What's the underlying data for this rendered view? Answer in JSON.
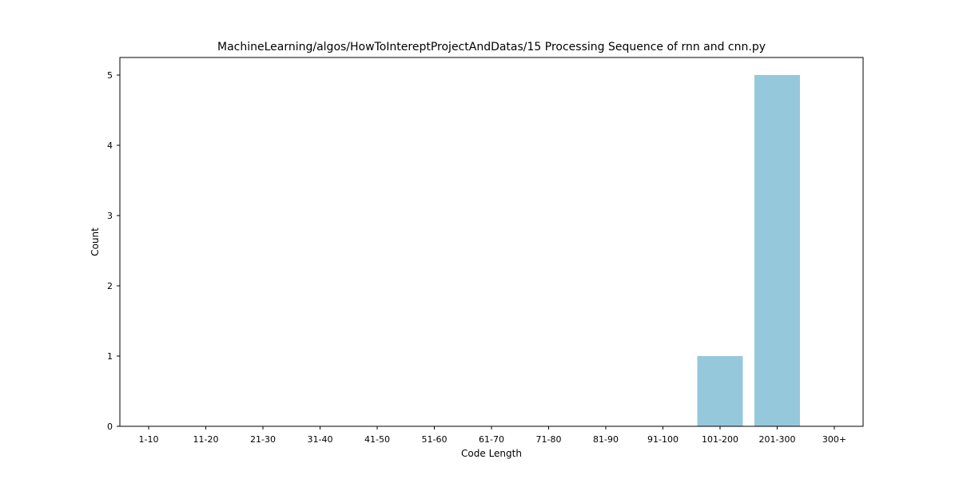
{
  "chart_data": {
    "type": "bar",
    "title": "MachineLearning/algos/HowToIntereptProjectAndDatas/15 Processing Sequence of rnn and cnn.py",
    "xlabel": "Code Length",
    "ylabel": "Count",
    "categories": [
      "1-10",
      "11-20",
      "21-30",
      "31-40",
      "41-50",
      "51-60",
      "61-70",
      "71-80",
      "81-90",
      "91-100",
      "101-200",
      "201-300",
      "300+"
    ],
    "values": [
      0,
      0,
      0,
      0,
      0,
      0,
      0,
      0,
      0,
      0,
      1,
      5,
      0
    ],
    "yticks": [
      0,
      1,
      2,
      3,
      4,
      5
    ],
    "ylim": [
      0,
      5.25
    ],
    "grid": false,
    "legend": "none",
    "bar_color": "#96c8dc"
  }
}
